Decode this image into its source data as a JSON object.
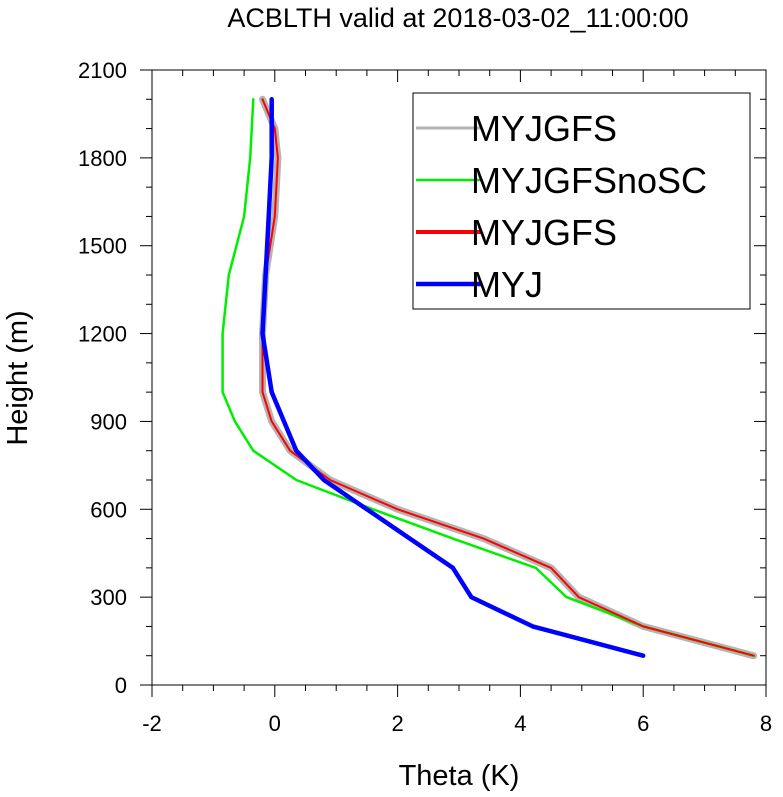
{
  "chart_data": {
    "type": "line",
    "title": "ACBLTH valid at 2018-03-02_11:00:00",
    "xlabel": "Theta (K)",
    "ylabel": "Height (m)",
    "xlim": [
      -2,
      8
    ],
    "ylim": [
      0,
      2100
    ],
    "xticks": [
      -2,
      0,
      2,
      4,
      6,
      8
    ],
    "yticks": [
      0,
      300,
      600,
      900,
      1200,
      1500,
      1800,
      2100
    ],
    "x_minor_step": 0.5,
    "y_minor_step": 100,
    "grid": false,
    "legend_position": "top-right",
    "series": [
      {
        "name": "MYJGFS",
        "color": "#b4b4b4",
        "x": [
          7.8,
          6.0,
          4.95,
          4.5,
          3.4,
          2.0,
          0.9,
          0.25,
          -0.05,
          -0.2,
          -0.2,
          -0.15,
          0.0,
          0.05,
          0.0,
          -0.2
        ],
        "y": [
          100,
          200,
          300,
          400,
          500,
          600,
          700,
          800,
          900,
          1000,
          1200,
          1400,
          1600,
          1800,
          1900,
          2000
        ]
      },
      {
        "name": "MYJGFSnoSC",
        "color": "#00ee00",
        "x": [
          7.8,
          6.0,
          4.75,
          4.25,
          2.9,
          1.6,
          0.35,
          -0.35,
          -0.65,
          -0.85,
          -0.85,
          -0.75,
          -0.5,
          -0.4,
          -0.35
        ],
        "y": [
          100,
          200,
          300,
          400,
          500,
          600,
          700,
          800,
          900,
          1000,
          1200,
          1400,
          1600,
          1800,
          2000
        ]
      },
      {
        "name": "MYJGFS",
        "color": "#ff0000",
        "x": [
          7.8,
          6.0,
          4.95,
          4.5,
          3.4,
          2.0,
          0.9,
          0.25,
          -0.05,
          -0.2,
          -0.2,
          -0.15,
          0.0,
          0.05,
          0.0,
          -0.2
        ],
        "y": [
          100,
          200,
          300,
          400,
          500,
          600,
          700,
          800,
          900,
          1000,
          1200,
          1400,
          1600,
          1800,
          1900,
          2000
        ]
      },
      {
        "name": "MYJ",
        "color": "#0000ff",
        "x": [
          6.0,
          4.2,
          3.2,
          2.9,
          2.2,
          1.5,
          0.8,
          0.35,
          -0.05,
          -0.2,
          -0.15,
          -0.1,
          -0.05,
          -0.05
        ],
        "y": [
          100,
          200,
          300,
          400,
          500,
          600,
          700,
          800,
          1000,
          1200,
          1400,
          1600,
          1800,
          2000
        ]
      }
    ]
  }
}
